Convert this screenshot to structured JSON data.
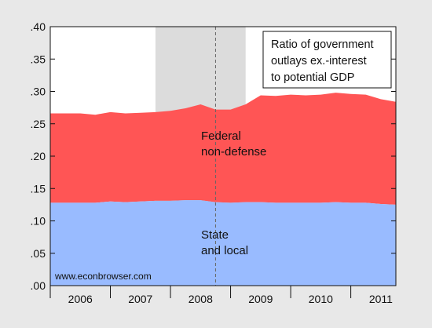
{
  "chart_data": {
    "type": "area",
    "legend_box": {
      "lines": [
        "Ratio of government",
        "outlays ex.-interest",
        "to potential GDP"
      ],
      "placement": "top-right"
    },
    "x_tick_labels": [
      "2006",
      "2007",
      "2008",
      "2009",
      "2010",
      "2011"
    ],
    "y_tick_labels": [
      ".00",
      ".05",
      ".10",
      ".15",
      ".20",
      ".25",
      ".30",
      ".35",
      ".40"
    ],
    "ylim": [
      0,
      0.4
    ],
    "x_domain": [
      2006.0,
      2011.75
    ],
    "grid": false,
    "recession_shade": [
      2007.75,
      2009.25
    ],
    "vertical_marker": 2008.75,
    "watermark": "www.econbrowser.com",
    "x": [
      2006.0,
      2006.25,
      2006.5,
      2006.75,
      2007.0,
      2007.25,
      2007.5,
      2007.75,
      2008.0,
      2008.25,
      2008.5,
      2008.75,
      2009.0,
      2009.25,
      2009.5,
      2009.75,
      2010.0,
      2010.25,
      2010.5,
      2010.75,
      2011.0,
      2011.25,
      2011.5,
      2011.75
    ],
    "series": [
      {
        "name": "State\nand local",
        "color": "#99bbff",
        "values": [
          0.128,
          0.128,
          0.128,
          0.128,
          0.13,
          0.129,
          0.13,
          0.131,
          0.131,
          0.132,
          0.132,
          0.129,
          0.128,
          0.129,
          0.129,
          0.128,
          0.128,
          0.128,
          0.128,
          0.129,
          0.128,
          0.128,
          0.126,
          0.125
        ]
      },
      {
        "name": "Federal\nnon-defense",
        "color": "#ff5555",
        "total": [
          0.266,
          0.266,
          0.266,
          0.264,
          0.268,
          0.266,
          0.267,
          0.268,
          0.27,
          0.274,
          0.28,
          0.272,
          0.272,
          0.28,
          0.294,
          0.293,
          0.295,
          0.294,
          0.295,
          0.298,
          0.296,
          0.295,
          0.288,
          0.284
        ]
      }
    ]
  }
}
